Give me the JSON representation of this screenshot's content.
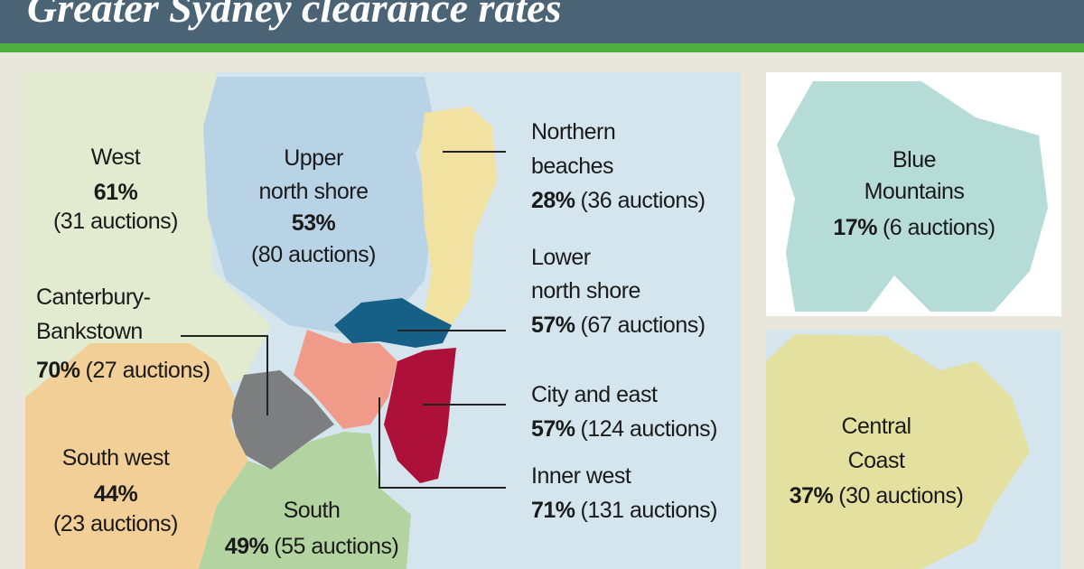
{
  "header": {
    "title": "Greater Sydney clearance rates"
  },
  "regions": [
    {
      "name": [
        "West"
      ],
      "rate": "61%",
      "auctions": "(31 auctions)"
    },
    {
      "name": [
        "Upper",
        "north shore"
      ],
      "rate": "53%",
      "auctions": "(80 auctions)"
    },
    {
      "name": [
        "Northern",
        "beaches"
      ],
      "rate": "28%",
      "auctions": "(36 auctions)"
    },
    {
      "name": [
        "Lower",
        "north shore"
      ],
      "rate": "57%",
      "auctions": "(67 auctions)"
    },
    {
      "name": [
        "Canterbury-",
        "Bankstown"
      ],
      "rate": "70%",
      "auctions": "(27 auctions)"
    },
    {
      "name": [
        "City and east"
      ],
      "rate": "57%",
      "auctions": "(124 auctions)"
    },
    {
      "name": [
        "Inner west"
      ],
      "rate": "71%",
      "auctions": "(131 auctions)"
    },
    {
      "name": [
        "South west"
      ],
      "rate": "44%",
      "auctions": "(23 auctions)"
    },
    {
      "name": [
        "South"
      ],
      "rate": "49%",
      "auctions": "(55 auctions)"
    },
    {
      "name": [
        "Blue",
        "Mountains"
      ],
      "rate": "17%",
      "auctions": "(6 auctions)"
    },
    {
      "name": [
        "Central",
        "Coast"
      ],
      "rate": "37%",
      "auctions": "(30 auctions)"
    }
  ]
}
